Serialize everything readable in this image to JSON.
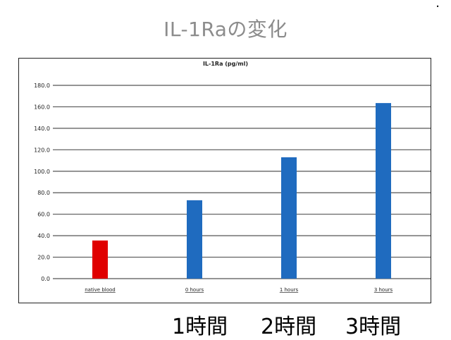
{
  "slide": {
    "title": "IL-1Raの変化",
    "corner_mark": "."
  },
  "time_labels": [
    "1時間",
    "2時間",
    "3時間"
  ],
  "colors": {
    "title_gray": "#8c8c8c",
    "bar_red": "#e00000",
    "bar_blue": "#1f6bbf",
    "grid": "#555555"
  },
  "chart_data": {
    "type": "bar",
    "title": "IL-1Ra (pg/ml)",
    "xlabel": "",
    "ylabel": "",
    "categories": [
      "native blood",
      "0 hours",
      "1 hours",
      "3 hours"
    ],
    "values": [
      35.5,
      73.0,
      113.0,
      163.5
    ],
    "bar_colors": [
      "#e00000",
      "#1f6bbf",
      "#1f6bbf",
      "#1f6bbf"
    ],
    "ylim": [
      0,
      180
    ],
    "yticks": [
      "0.0",
      "20.0",
      "40.0",
      "60.0",
      "80.0",
      "100.0",
      "120.0",
      "140.0",
      "160.0",
      "180.0"
    ],
    "grid": true,
    "legend": "none"
  }
}
